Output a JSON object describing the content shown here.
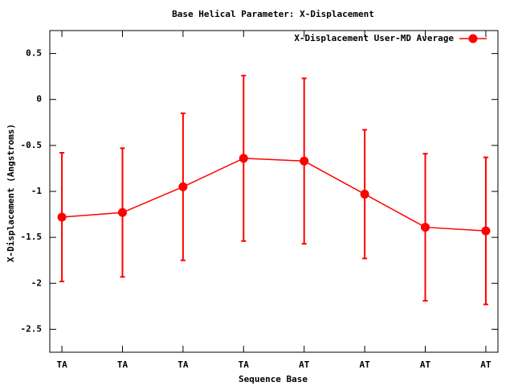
{
  "chart_data": {
    "type": "line",
    "title": "Base  Helical Parameter: X-Displacement",
    "x_label": "Sequence Base",
    "y_label": "X-Displacement (Angstroms)",
    "categories": [
      "TA",
      "TA",
      "TA",
      "TA",
      "AT",
      "AT",
      "AT",
      "AT"
    ],
    "series": [
      {
        "name": "X-Displacement User-MD Average",
        "color": "#ff0000",
        "values": [
          -1.28,
          -1.23,
          -0.95,
          -0.64,
          -0.67,
          -1.03,
          -1.39,
          -1.43
        ],
        "errors": [
          0.7,
          0.7,
          0.8,
          0.9,
          0.9,
          0.7,
          0.8,
          0.8
        ]
      }
    ],
    "ylim": [
      -2.75,
      0.75
    ],
    "yticks": [
      0.5,
      0,
      -0.5,
      -1,
      -1.5,
      -2,
      -2.5
    ],
    "legend": "top-right"
  }
}
